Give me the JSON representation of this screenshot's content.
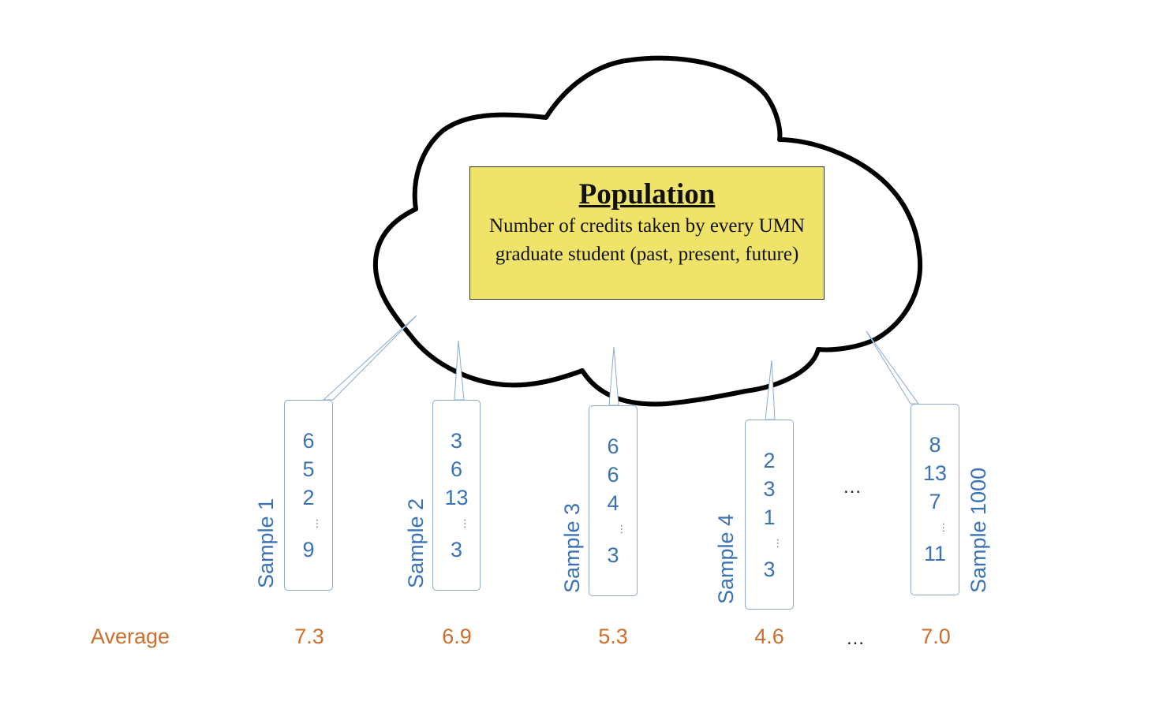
{
  "population": {
    "title": "Population",
    "description": "Number of credits taken by every UMN graduate student (past, present, future)"
  },
  "samples": [
    {
      "label": "Sample 1",
      "values": [
        "6",
        "5",
        "2",
        "…",
        "9"
      ],
      "average": "7.3"
    },
    {
      "label": "Sample 2",
      "values": [
        "3",
        "6",
        "13",
        "…",
        "3"
      ],
      "average": "6.9"
    },
    {
      "label": "Sample 3",
      "values": [
        "6",
        "6",
        "4",
        "…",
        "3"
      ],
      "average": "5.3"
    },
    {
      "label": "Sample 4",
      "values": [
        "2",
        "3",
        "1",
        "…",
        "3"
      ],
      "average": "4.6"
    },
    {
      "label": "Sample 1000",
      "values": [
        "8",
        "13",
        "7",
        "…",
        "11"
      ],
      "average": "7.0"
    }
  ],
  "average_label": "Average",
  "ellipsis": "…",
  "colors": {
    "box_fill": "#efe36a",
    "sample_text": "#3a72b3",
    "average_text": "#cc6e2c",
    "cloud_stroke": "#000000"
  }
}
